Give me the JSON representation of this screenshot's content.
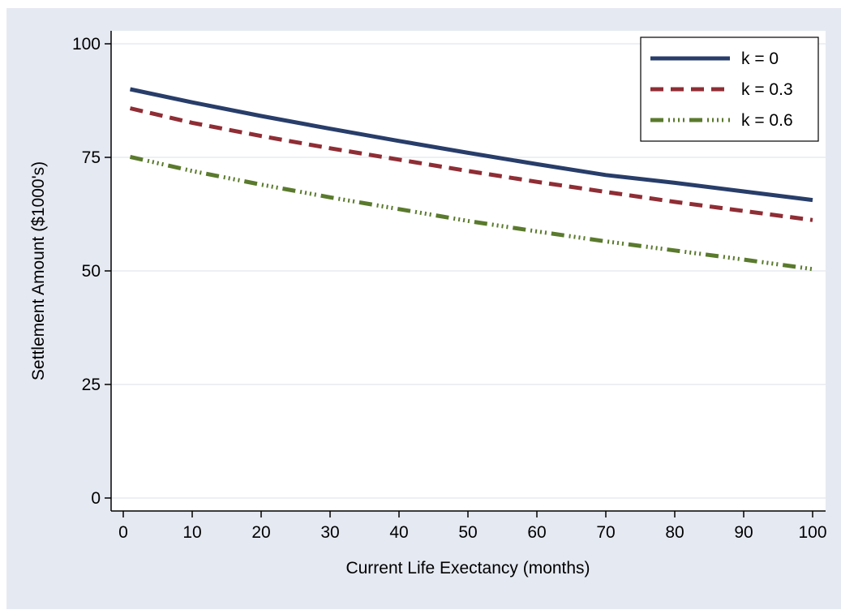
{
  "chart_data": {
    "type": "line",
    "title": "",
    "xlabel": "Current Life Exectancy (months)",
    "ylabel": "Settlement Amount ($1000's)",
    "xlim": [
      0,
      100
    ],
    "ylim": [
      0,
      100
    ],
    "xticks": [
      0,
      10,
      20,
      30,
      40,
      50,
      60,
      70,
      80,
      90,
      100
    ],
    "yticks": [
      0,
      25,
      50,
      75,
      100
    ],
    "grid": true,
    "legend_position": "top-right",
    "background": "#e5e9f2",
    "plot_background": "#ffffff",
    "x": [
      1,
      10,
      20,
      30,
      40,
      50,
      60,
      70,
      80,
      90,
      100
    ],
    "series": [
      {
        "name": "k = 0",
        "color": "#283d69",
        "style": "solid",
        "values": [
          90.0,
          87.1,
          84.1,
          81.3,
          78.6,
          76.0,
          73.5,
          71.1,
          69.4,
          67.5,
          65.6
        ]
      },
      {
        "name": "k = 0.3",
        "color": "#8f2d35",
        "style": "dash",
        "values": [
          85.8,
          82.6,
          79.7,
          77.0,
          74.5,
          72.0,
          69.6,
          67.4,
          65.2,
          63.2,
          61.2
        ]
      },
      {
        "name": "k = 0.6",
        "color": "#5a7a2d",
        "style": "dash-dot",
        "values": [
          75.1,
          72.0,
          69.0,
          66.2,
          63.6,
          61.0,
          58.7,
          56.5,
          54.5,
          52.5,
          50.4
        ]
      }
    ]
  }
}
